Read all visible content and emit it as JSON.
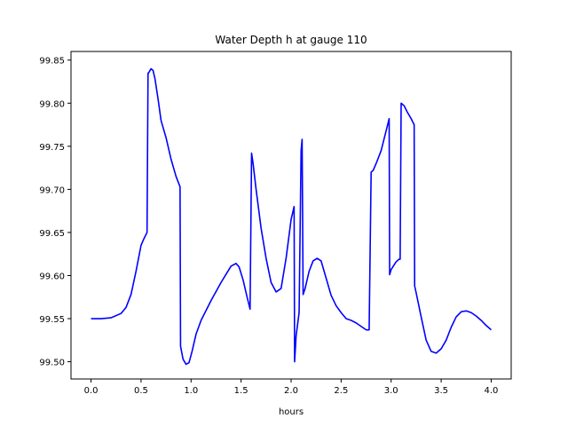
{
  "chart_data": {
    "type": "line",
    "title": "Water Depth h at gauge 110",
    "xlabel": "hours",
    "ylabel": "",
    "xlim": [
      -0.2,
      4.2
    ],
    "ylim": [
      99.48,
      99.86
    ],
    "xticks": [
      0.0,
      0.5,
      1.0,
      1.5,
      2.0,
      2.5,
      3.0,
      3.5,
      4.0
    ],
    "xtick_labels": [
      "0.0",
      "0.5",
      "1.0",
      "1.5",
      "2.0",
      "2.5",
      "3.0",
      "3.5",
      "4.0"
    ],
    "yticks": [
      99.5,
      99.55,
      99.6,
      99.65,
      99.7,
      99.75,
      99.8,
      99.85
    ],
    "ytick_labels": [
      "99.50",
      "99.55",
      "99.60",
      "99.65",
      "99.70",
      "99.75",
      "99.80",
      "99.85"
    ],
    "grid": false,
    "series": [
      {
        "color": "#0000ff",
        "x": [
          0.0,
          0.1,
          0.2,
          0.3,
          0.35,
          0.4,
          0.45,
          0.5,
          0.53,
          0.56,
          0.57,
          0.575,
          0.6,
          0.62,
          0.64,
          0.67,
          0.7,
          0.75,
          0.8,
          0.85,
          0.89,
          0.895,
          0.92,
          0.95,
          0.98,
          1.01,
          1.05,
          1.1,
          1.2,
          1.3,
          1.4,
          1.45,
          1.48,
          1.52,
          1.56,
          1.59,
          1.605,
          1.62,
          1.65,
          1.7,
          1.75,
          1.8,
          1.85,
          1.9,
          1.95,
          2.0,
          2.03,
          2.035,
          2.05,
          2.08,
          2.1,
          2.11,
          2.12,
          2.14,
          2.18,
          2.22,
          2.26,
          2.3,
          2.35,
          2.4,
          2.45,
          2.5,
          2.55,
          2.6,
          2.65,
          2.7,
          2.75,
          2.78,
          2.8,
          2.82,
          2.85,
          2.9,
          2.95,
          2.98,
          2.985,
          3.0,
          3.05,
          3.08,
          3.09,
          3.1,
          3.13,
          3.16,
          3.2,
          3.23,
          3.235,
          3.25,
          3.3,
          3.35,
          3.4,
          3.45,
          3.5,
          3.55,
          3.6,
          3.65,
          3.7,
          3.75,
          3.8,
          3.85,
          3.9,
          3.95,
          4.0
        ],
        "y": [
          99.55,
          99.55,
          99.551,
          99.556,
          99.563,
          99.578,
          99.605,
          99.635,
          99.643,
          99.65,
          99.835,
          99.835,
          99.84,
          99.838,
          99.828,
          99.805,
          99.78,
          99.76,
          99.735,
          99.715,
          99.703,
          99.518,
          99.503,
          99.497,
          99.499,
          99.512,
          99.532,
          99.548,
          99.571,
          99.592,
          99.611,
          99.614,
          99.61,
          99.595,
          99.575,
          99.561,
          99.742,
          99.73,
          99.7,
          99.655,
          99.62,
          99.592,
          99.581,
          99.585,
          99.62,
          99.665,
          99.68,
          99.5,
          99.53,
          99.557,
          99.745,
          99.758,
          99.578,
          99.585,
          99.605,
          99.617,
          99.62,
          99.617,
          99.597,
          99.577,
          99.565,
          99.557,
          99.55,
          99.548,
          99.545,
          99.541,
          99.537,
          99.537,
          99.72,
          99.722,
          99.73,
          99.745,
          99.768,
          99.782,
          99.601,
          99.607,
          99.616,
          99.619,
          99.619,
          99.8,
          99.797,
          99.79,
          99.782,
          99.775,
          99.588,
          99.58,
          99.552,
          99.525,
          99.512,
          99.51,
          99.515,
          99.525,
          99.54,
          99.552,
          99.558,
          99.559,
          99.557,
          99.553,
          99.548,
          99.542,
          99.537
        ]
      }
    ]
  }
}
